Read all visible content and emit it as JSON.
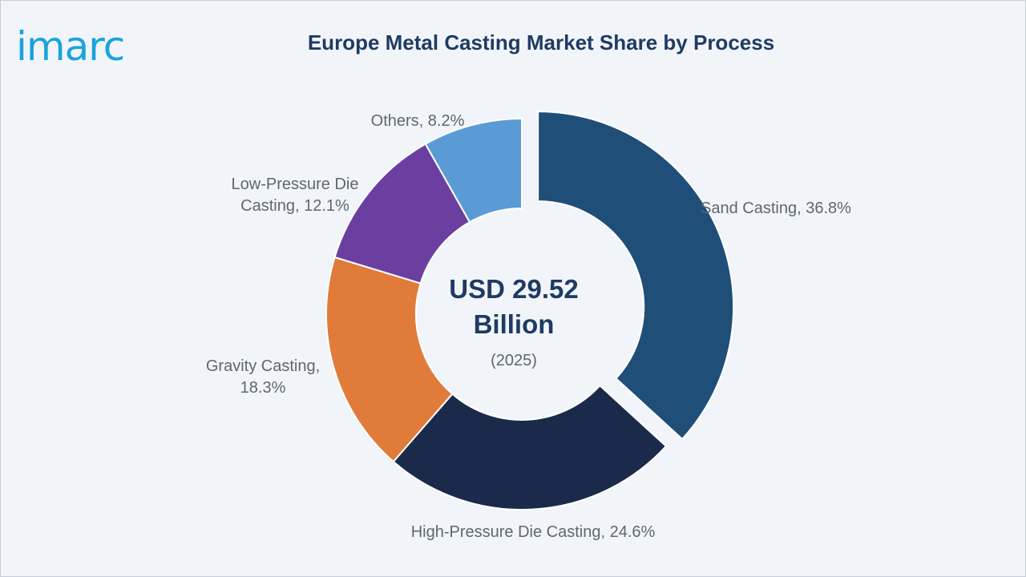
{
  "brand": {
    "logo_text": "imarc"
  },
  "chart_data": {
    "type": "pie",
    "title": "Europe Metal Casting Market Share by Process",
    "center_value": "USD 29.52",
    "center_unit": "Billion",
    "center_year": "(2025)",
    "slices": [
      {
        "name": "Sand Casting",
        "value": 36.8,
        "color": "#1f4e78",
        "label_line1": "Sand Casting, 36.8%",
        "label_line2": ""
      },
      {
        "name": "High-Pressure Die Casting",
        "value": 24.6,
        "color": "#1b2a4a",
        "label_line1": "High-Pressure Die Casting, 24.6%",
        "label_line2": ""
      },
      {
        "name": "Gravity Casting",
        "value": 18.3,
        "color": "#e07b39",
        "label_line1": "Gravity Casting,",
        "label_line2": "18.3%"
      },
      {
        "name": "Low-Pressure Die Casting",
        "value": 12.1,
        "color": "#6b3fa0",
        "label_line1": "Low-Pressure Die",
        "label_line2": "Casting, 12.1%"
      },
      {
        "name": "Others",
        "value": 8.2,
        "color": "#5b9bd5",
        "label_line1": "Others, 8.2%",
        "label_line2": ""
      }
    ]
  }
}
